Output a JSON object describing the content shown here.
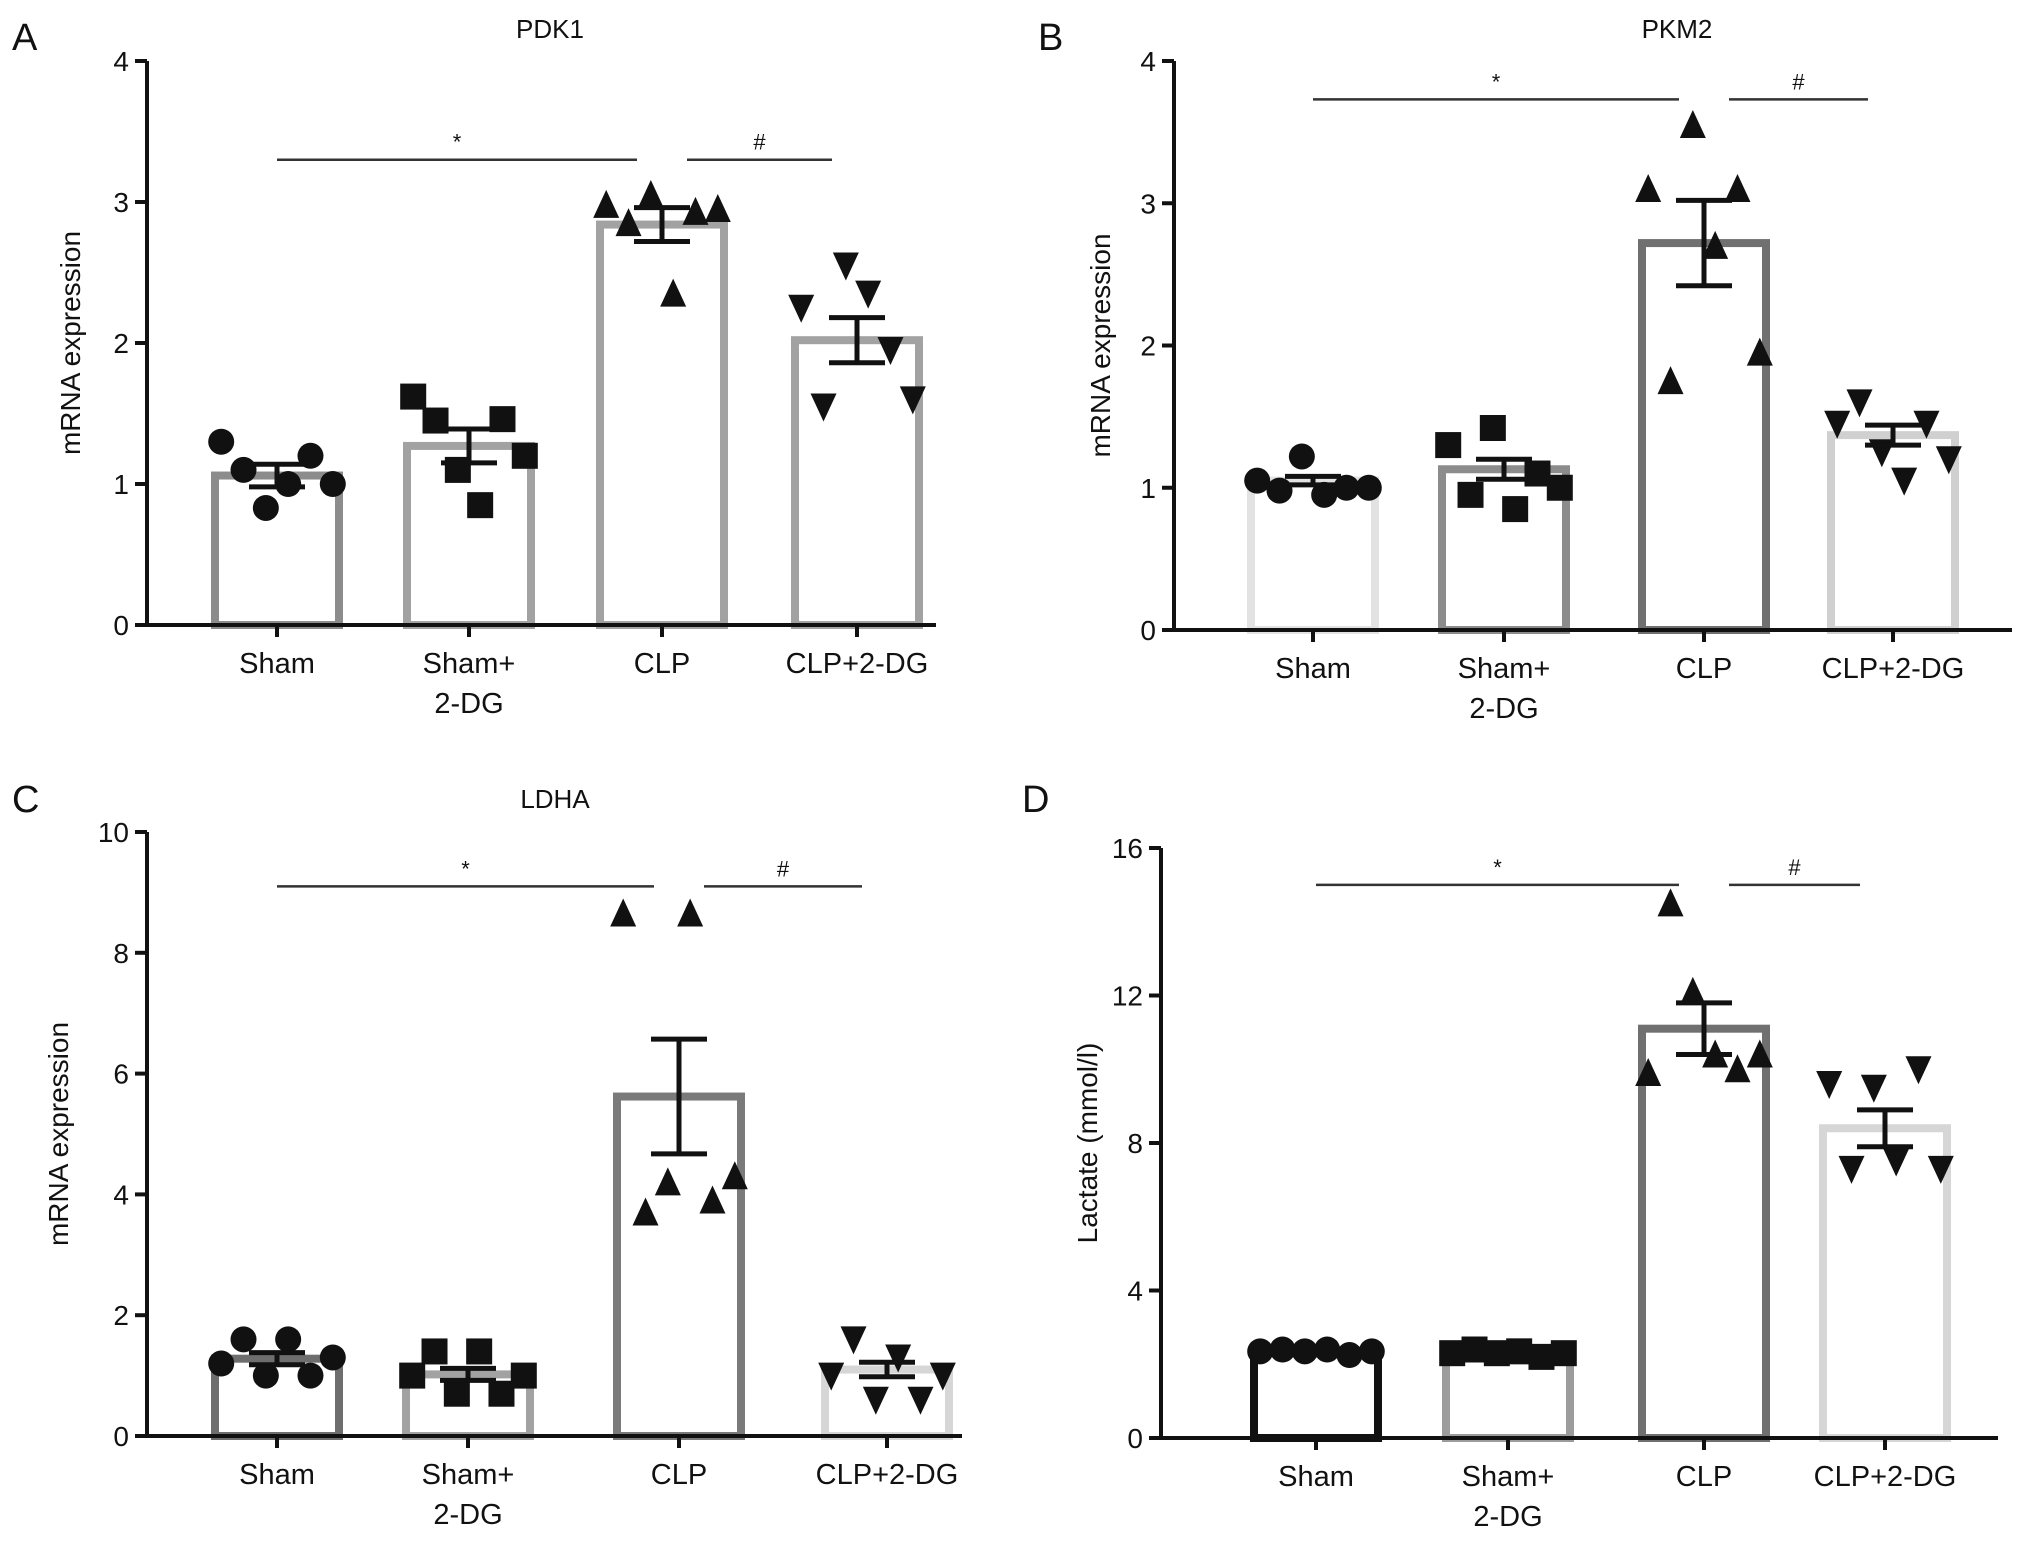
{
  "chart_data": [
    {
      "panel": "A",
      "type": "bar",
      "title": "PDK1",
      "ylabel": "mRNA expression",
      "ylim": [
        0,
        4
      ],
      "yticks": [
        0,
        1,
        2,
        3,
        4
      ],
      "categories": [
        [
          "Sham"
        ],
        [
          "Sham+",
          "2-DG"
        ],
        [
          "CLP"
        ],
        [
          "CLP+2-DG"
        ]
      ],
      "means": [
        1.06,
        1.27,
        2.84,
        2.02
      ],
      "sem": [
        0.08,
        0.12,
        0.12,
        0.16
      ],
      "points": [
        [
          1.3,
          1.1,
          0.83,
          1.0,
          1.2,
          1.0
        ],
        [
          1.62,
          1.45,
          1.1,
          0.85,
          1.46,
          1.2
        ],
        [
          2.98,
          2.85,
          3.05,
          2.35,
          2.93,
          2.95
        ],
        [
          2.25,
          1.55,
          2.55,
          2.35,
          1.95,
          1.6
        ]
      ],
      "markers": [
        "circle",
        "square",
        "triangle-up",
        "triangle-down"
      ],
      "bar_colors": [
        "#8c8c8c",
        "#a2a2a2",
        "#a2a2a2",
        "#a2a2a2"
      ],
      "significance": [
        {
          "from": 0,
          "to": 2,
          "label": "*",
          "y": 3.3
        },
        {
          "from": 2,
          "to": 3,
          "label": "#",
          "y": 3.3
        }
      ]
    },
    {
      "panel": "B",
      "type": "bar",
      "title": "PKM2",
      "ylabel": "mRNA expression",
      "ylim": [
        0,
        4
      ],
      "yticks": [
        0,
        1,
        2,
        3,
        4
      ],
      "categories": [
        [
          "Sham"
        ],
        [
          "Sham+",
          "2-DG"
        ],
        [
          "CLP"
        ],
        [
          "CLP+2-DG"
        ]
      ],
      "means": [
        1.05,
        1.13,
        2.72,
        1.37
      ],
      "sem": [
        0.03,
        0.07,
        0.3,
        0.07
      ],
      "points": [
        [
          1.05,
          0.98,
          1.22,
          0.95,
          1.0,
          1.0
        ],
        [
          1.3,
          0.95,
          1.42,
          0.85,
          1.1,
          1.0
        ],
        [
          3.1,
          1.75,
          3.55,
          2.7,
          3.1,
          1.95
        ],
        [
          1.45,
          1.6,
          1.25,
          1.05,
          1.45,
          1.2
        ]
      ],
      "markers": [
        "circle",
        "square",
        "triangle-up",
        "triangle-down"
      ],
      "bar_colors": [
        "#e2e2e2",
        "#8c8c8c",
        "#707070",
        "#d0d0d0"
      ],
      "significance": [
        {
          "from": 0,
          "to": 2,
          "label": "*",
          "y": 3.73
        },
        {
          "from": 2,
          "to": 3,
          "label": "#",
          "y": 3.73
        }
      ]
    },
    {
      "panel": "C",
      "type": "bar",
      "title": "LDHA",
      "ylabel": "mRNA expression",
      "ylim": [
        0,
        10
      ],
      "yticks": [
        0,
        2,
        4,
        6,
        8,
        10
      ],
      "categories": [
        [
          "Sham"
        ],
        [
          "Sham+",
          "2-DG"
        ],
        [
          "CLP"
        ],
        [
          "CLP+2-DG"
        ]
      ],
      "means": [
        1.28,
        1.02,
        5.62,
        1.1
      ],
      "sem": [
        0.1,
        0.1,
        0.95,
        0.12
      ],
      "points": [
        [
          1.2,
          1.6,
          1.0,
          1.6,
          1.0,
          1.3
        ],
        [
          1.0,
          1.4,
          0.7,
          1.4,
          0.7,
          1.0
        ],
        [
          8.65,
          3.7,
          4.2,
          8.65,
          3.9,
          4.3
        ],
        [
          1.0,
          1.6,
          0.6,
          1.3,
          0.6,
          1.0
        ]
      ],
      "markers": [
        "circle",
        "square",
        "triangle-up",
        "triangle-down"
      ],
      "bar_colors": [
        "#6e6e6e",
        "#a2a2a2",
        "#7a7a7a",
        "#d6d6d6"
      ],
      "significance": [
        {
          "from": 0,
          "to": 2,
          "label": "*",
          "y": 9.1
        },
        {
          "from": 2,
          "to": 3,
          "label": "#",
          "y": 9.1
        }
      ]
    },
    {
      "panel": "D",
      "type": "bar",
      "title": "",
      "ylabel": "Lactate (mmol/l)",
      "ylim": [
        0,
        16
      ],
      "yticks": [
        0,
        4,
        8,
        12,
        16
      ],
      "categories": [
        [
          "Sham"
        ],
        [
          "Sham+",
          "2-DG"
        ],
        [
          "CLP"
        ],
        [
          "CLP+2-DG"
        ]
      ],
      "means": [
        2.3,
        2.3,
        11.1,
        8.4
      ],
      "sem": [
        0.05,
        0.05,
        0.7,
        0.5
      ],
      "points": [
        [
          2.35,
          2.4,
          2.35,
          2.4,
          2.25,
          2.35
        ],
        [
          2.3,
          2.4,
          2.3,
          2.35,
          2.2,
          2.3
        ],
        [
          9.9,
          14.5,
          12.1,
          10.4,
          10.0,
          10.4
        ],
        [
          9.6,
          7.3,
          9.5,
          7.5,
          10.0,
          7.3
        ]
      ],
      "markers": [
        "circle",
        "square",
        "triangle-up",
        "triangle-down"
      ],
      "bar_colors": [
        "#111111",
        "#9c9c9c",
        "#707070",
        "#d6d6d6"
      ],
      "significance": [
        {
          "from": 0,
          "to": 2,
          "label": "*",
          "y": 15.0
        },
        {
          "from": 2,
          "to": 3,
          "label": "#",
          "y": 15.0
        }
      ]
    }
  ]
}
